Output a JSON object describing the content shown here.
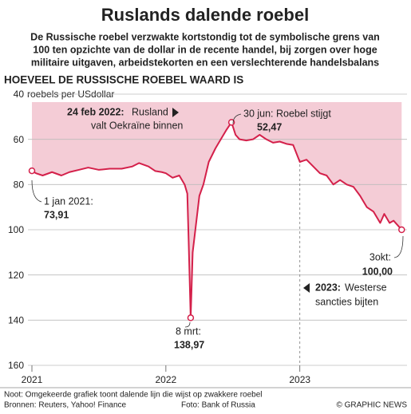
{
  "chart_data": {
    "type": "line",
    "title": "Ruslands dalende roebel",
    "subtitle": [
      "De Russische roebel verzwakte kortstondig tot de symbolische grens van",
      "100 ten opzichte van de dollar in de recente handel, bij zorgen over hoge",
      "militaire uitgaven, arbeidstekorten en een verslechterende handelsbalans"
    ],
    "section_title": "HOEVEEL DE RUSSISCHE ROEBEL WAARD IS",
    "y_label": "roebels per USdollar",
    "x": [
      2021.0,
      2021.03,
      2021.08,
      2021.15,
      2021.22,
      2021.28,
      2021.35,
      2021.42,
      2021.5,
      2021.58,
      2021.67,
      2021.75,
      2021.8,
      2021.87,
      2021.92,
      2021.97,
      2022.0,
      2022.05,
      2022.1,
      2022.14,
      2022.16,
      2022.17,
      2022.185,
      2022.2,
      2022.22,
      2022.25,
      2022.28,
      2022.32,
      2022.37,
      2022.41,
      2022.45,
      2022.49,
      2022.52,
      2022.55,
      2022.6,
      2022.65,
      2022.7,
      2022.75,
      2022.8,
      2022.85,
      2022.9,
      2022.95,
      2023.0,
      2023.05,
      2023.1,
      2023.15,
      2023.2,
      2023.25,
      2023.3,
      2023.35,
      2023.4,
      2023.45,
      2023.5,
      2023.55,
      2023.6,
      2023.63,
      2023.67,
      2023.7,
      2023.73,
      2023.76
    ],
    "values": [
      73.91,
      75,
      76,
      74.5,
      76,
      74.5,
      73.5,
      72.5,
      73.5,
      73,
      73,
      72,
      70.5,
      72,
      74,
      74.5,
      75,
      77,
      76,
      80,
      84,
      105,
      138.97,
      110,
      100,
      85,
      80,
      70,
      64,
      60,
      56,
      52.47,
      58,
      60,
      60.5,
      60,
      58,
      60,
      61.5,
      61,
      62,
      62.5,
      70,
      69,
      72,
      75,
      76,
      80,
      78,
      80,
      81,
      85,
      90,
      92,
      97,
      93,
      97,
      96,
      98,
      100
    ],
    "value_labels": [
      "73,91",
      null,
      null,
      null,
      null,
      null,
      null,
      null,
      null,
      null,
      null,
      null,
      null,
      null,
      null,
      null,
      null,
      null,
      null,
      null,
      null,
      null,
      "138,97",
      null,
      null,
      null,
      null,
      null,
      null,
      null,
      null,
      "52,47",
      null,
      null,
      null,
      null,
      null,
      null,
      null,
      null,
      null,
      null,
      null,
      null,
      null,
      null,
      null,
      null,
      null,
      null,
      null,
      null,
      null,
      null,
      null,
      null,
      null,
      null,
      null,
      "100,00"
    ],
    "color": "#d4204a",
    "area_color": "#f2c3cf",
    "inverted_y": true,
    "ylim": [
      40,
      160
    ],
    "yticks": [
      40,
      60,
      80,
      100,
      120,
      140,
      160
    ],
    "xlim": [
      2021,
      2023.8
    ],
    "xticks": [
      2021,
      2022,
      2023
    ],
    "grid": true,
    "annotations": [
      {
        "label": "1 jan 2021:"
      },
      {
        "label": "24 feb 2022:",
        "text": [
          "Rusland",
          "valt Oekraïne binnen"
        ]
      },
      {
        "label": "30 jun:",
        "text": [
          "Roebel stijgt"
        ]
      },
      {
        "label": "8 mrt:"
      },
      {
        "label": "3okt:"
      },
      {
        "label": "2023:",
        "text": [
          "Westerse",
          "sancties bijten"
        ]
      }
    ],
    "note": "Noot: Omgekeerde grafiek toont dalende lijn die wijst op zwakkere roebel",
    "sources": "Bronnen: Reuters, Yahoo! Finance",
    "photo": "Foto: Bank of Russia",
    "credit": "© GRAPHIC NEWS"
  }
}
